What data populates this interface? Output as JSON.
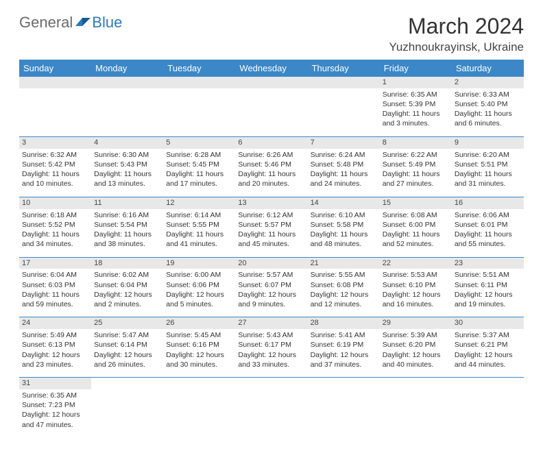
{
  "logo": {
    "text1": "General",
    "text2": "Blue"
  },
  "title": "March 2024",
  "location": "Yuzhnoukrayinsk, Ukraine",
  "colors": {
    "header_bg": "#3b87c8",
    "header_text": "#ffffff",
    "daynum_bg": "#e8e8e8",
    "row_border": "#3b87c8",
    "body_text": "#333333",
    "logo_general": "#6a6a6a",
    "logo_blue": "#2b7bbf"
  },
  "weekdays": [
    "Sunday",
    "Monday",
    "Tuesday",
    "Wednesday",
    "Thursday",
    "Friday",
    "Saturday"
  ],
  "weeks": [
    [
      null,
      null,
      null,
      null,
      null,
      {
        "d": "1",
        "sr": "Sunrise: 6:35 AM",
        "ss": "Sunset: 5:39 PM",
        "dl1": "Daylight: 11 hours",
        "dl2": "and 3 minutes."
      },
      {
        "d": "2",
        "sr": "Sunrise: 6:33 AM",
        "ss": "Sunset: 5:40 PM",
        "dl1": "Daylight: 11 hours",
        "dl2": "and 6 minutes."
      }
    ],
    [
      {
        "d": "3",
        "sr": "Sunrise: 6:32 AM",
        "ss": "Sunset: 5:42 PM",
        "dl1": "Daylight: 11 hours",
        "dl2": "and 10 minutes."
      },
      {
        "d": "4",
        "sr": "Sunrise: 6:30 AM",
        "ss": "Sunset: 5:43 PM",
        "dl1": "Daylight: 11 hours",
        "dl2": "and 13 minutes."
      },
      {
        "d": "5",
        "sr": "Sunrise: 6:28 AM",
        "ss": "Sunset: 5:45 PM",
        "dl1": "Daylight: 11 hours",
        "dl2": "and 17 minutes."
      },
      {
        "d": "6",
        "sr": "Sunrise: 6:26 AM",
        "ss": "Sunset: 5:46 PM",
        "dl1": "Daylight: 11 hours",
        "dl2": "and 20 minutes."
      },
      {
        "d": "7",
        "sr": "Sunrise: 6:24 AM",
        "ss": "Sunset: 5:48 PM",
        "dl1": "Daylight: 11 hours",
        "dl2": "and 24 minutes."
      },
      {
        "d": "8",
        "sr": "Sunrise: 6:22 AM",
        "ss": "Sunset: 5:49 PM",
        "dl1": "Daylight: 11 hours",
        "dl2": "and 27 minutes."
      },
      {
        "d": "9",
        "sr": "Sunrise: 6:20 AM",
        "ss": "Sunset: 5:51 PM",
        "dl1": "Daylight: 11 hours",
        "dl2": "and 31 minutes."
      }
    ],
    [
      {
        "d": "10",
        "sr": "Sunrise: 6:18 AM",
        "ss": "Sunset: 5:52 PM",
        "dl1": "Daylight: 11 hours",
        "dl2": "and 34 minutes."
      },
      {
        "d": "11",
        "sr": "Sunrise: 6:16 AM",
        "ss": "Sunset: 5:54 PM",
        "dl1": "Daylight: 11 hours",
        "dl2": "and 38 minutes."
      },
      {
        "d": "12",
        "sr": "Sunrise: 6:14 AM",
        "ss": "Sunset: 5:55 PM",
        "dl1": "Daylight: 11 hours",
        "dl2": "and 41 minutes."
      },
      {
        "d": "13",
        "sr": "Sunrise: 6:12 AM",
        "ss": "Sunset: 5:57 PM",
        "dl1": "Daylight: 11 hours",
        "dl2": "and 45 minutes."
      },
      {
        "d": "14",
        "sr": "Sunrise: 6:10 AM",
        "ss": "Sunset: 5:58 PM",
        "dl1": "Daylight: 11 hours",
        "dl2": "and 48 minutes."
      },
      {
        "d": "15",
        "sr": "Sunrise: 6:08 AM",
        "ss": "Sunset: 6:00 PM",
        "dl1": "Daylight: 11 hours",
        "dl2": "and 52 minutes."
      },
      {
        "d": "16",
        "sr": "Sunrise: 6:06 AM",
        "ss": "Sunset: 6:01 PM",
        "dl1": "Daylight: 11 hours",
        "dl2": "and 55 minutes."
      }
    ],
    [
      {
        "d": "17",
        "sr": "Sunrise: 6:04 AM",
        "ss": "Sunset: 6:03 PM",
        "dl1": "Daylight: 11 hours",
        "dl2": "and 59 minutes."
      },
      {
        "d": "18",
        "sr": "Sunrise: 6:02 AM",
        "ss": "Sunset: 6:04 PM",
        "dl1": "Daylight: 12 hours",
        "dl2": "and 2 minutes."
      },
      {
        "d": "19",
        "sr": "Sunrise: 6:00 AM",
        "ss": "Sunset: 6:06 PM",
        "dl1": "Daylight: 12 hours",
        "dl2": "and 5 minutes."
      },
      {
        "d": "20",
        "sr": "Sunrise: 5:57 AM",
        "ss": "Sunset: 6:07 PM",
        "dl1": "Daylight: 12 hours",
        "dl2": "and 9 minutes."
      },
      {
        "d": "21",
        "sr": "Sunrise: 5:55 AM",
        "ss": "Sunset: 6:08 PM",
        "dl1": "Daylight: 12 hours",
        "dl2": "and 12 minutes."
      },
      {
        "d": "22",
        "sr": "Sunrise: 5:53 AM",
        "ss": "Sunset: 6:10 PM",
        "dl1": "Daylight: 12 hours",
        "dl2": "and 16 minutes."
      },
      {
        "d": "23",
        "sr": "Sunrise: 5:51 AM",
        "ss": "Sunset: 6:11 PM",
        "dl1": "Daylight: 12 hours",
        "dl2": "and 19 minutes."
      }
    ],
    [
      {
        "d": "24",
        "sr": "Sunrise: 5:49 AM",
        "ss": "Sunset: 6:13 PM",
        "dl1": "Daylight: 12 hours",
        "dl2": "and 23 minutes."
      },
      {
        "d": "25",
        "sr": "Sunrise: 5:47 AM",
        "ss": "Sunset: 6:14 PM",
        "dl1": "Daylight: 12 hours",
        "dl2": "and 26 minutes."
      },
      {
        "d": "26",
        "sr": "Sunrise: 5:45 AM",
        "ss": "Sunset: 6:16 PM",
        "dl1": "Daylight: 12 hours",
        "dl2": "and 30 minutes."
      },
      {
        "d": "27",
        "sr": "Sunrise: 5:43 AM",
        "ss": "Sunset: 6:17 PM",
        "dl1": "Daylight: 12 hours",
        "dl2": "and 33 minutes."
      },
      {
        "d": "28",
        "sr": "Sunrise: 5:41 AM",
        "ss": "Sunset: 6:19 PM",
        "dl1": "Daylight: 12 hours",
        "dl2": "and 37 minutes."
      },
      {
        "d": "29",
        "sr": "Sunrise: 5:39 AM",
        "ss": "Sunset: 6:20 PM",
        "dl1": "Daylight: 12 hours",
        "dl2": "and 40 minutes."
      },
      {
        "d": "30",
        "sr": "Sunrise: 5:37 AM",
        "ss": "Sunset: 6:21 PM",
        "dl1": "Daylight: 12 hours",
        "dl2": "and 44 minutes."
      }
    ],
    [
      {
        "d": "31",
        "sr": "Sunrise: 6:35 AM",
        "ss": "Sunset: 7:23 PM",
        "dl1": "Daylight: 12 hours",
        "dl2": "and 47 minutes."
      },
      null,
      null,
      null,
      null,
      null,
      null
    ]
  ]
}
